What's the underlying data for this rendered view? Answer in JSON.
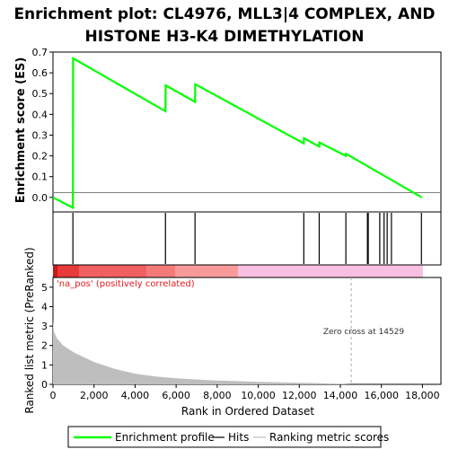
{
  "title_line1": "Enrichment plot: CL4976, MLL3|4 COMPLEX, AND",
  "title_line2": "HISTONE H3-K4 DIMETHYLATION",
  "es_ylabel": "Enrichment score (ES)",
  "metric_ylabel": "Ranked list metric (PreRanked)",
  "xlabel": "Rank in Ordered Dataset",
  "corr_label": "'na_pos' (positively correlated)",
  "zero_cross_label": "Zero cross at 14529",
  "legend": {
    "profile": "Enrichment profile",
    "hits": "Hits",
    "metric": "Ranking metric scores"
  },
  "colors": {
    "profile": "#00ff00",
    "hits": "#000000",
    "metric_fill": "#bebebe",
    "corr_text": "#e41a1c"
  },
  "chart_data": {
    "type": "line",
    "title": "Enrichment plot: CL4976, MLL3|4 COMPLEX, AND HISTONE H3-K4 DIMETHYLATION",
    "xlim": [
      0,
      18900
    ],
    "x_ticks": [
      0,
      2000,
      4000,
      6000,
      8000,
      10000,
      12000,
      14000,
      16000,
      18000
    ],
    "x_tick_labels": [
      "0",
      "2,000",
      "4,000",
      "6,000",
      "8,000",
      "10,000",
      "12,000",
      "14,000",
      "16,000",
      "18,000"
    ],
    "es_ylim": [
      -0.07,
      0.7
    ],
    "es_ticks": [
      0.0,
      0.1,
      0.2,
      0.3,
      0.4,
      0.5,
      0.6,
      0.7
    ],
    "es_tick_labels": [
      "0.0",
      "0.1",
      "0.2",
      "0.3",
      "0.4",
      "0.5",
      "0.6",
      "0.7"
    ],
    "metric_ylim": [
      0,
      5.5
    ],
    "metric_ticks": [
      0,
      1,
      2,
      3,
      4,
      5
    ],
    "metric_tick_labels": [
      "0",
      "1",
      "2",
      "3",
      "4",
      "5"
    ],
    "zero_cross": 14529,
    "series": [
      {
        "name": "Enrichment profile",
        "x": [
          0,
          970,
          980,
          5480,
          5490,
          6920,
          6930,
          12220,
          12230,
          12970,
          12980,
          14270,
          14280,
          17970
        ],
        "y": [
          0.0,
          -0.05,
          0.67,
          0.415,
          0.54,
          0.46,
          0.545,
          0.26,
          0.285,
          0.245,
          0.265,
          0.2,
          0.21,
          0.0
        ]
      }
    ],
    "hits": [
      970,
      5480,
      6920,
      12220,
      12970,
      14270,
      15320,
      15360,
      15920,
      16130,
      16280,
      16490,
      17950
    ],
    "metric_curve": {
      "x": [
        0,
        50,
        200,
        500,
        1000,
        2000,
        3000,
        4000,
        5000,
        6000,
        7000,
        8000,
        9000,
        10000,
        11000,
        12000,
        13000,
        14000,
        14529,
        15000,
        16000,
        17000,
        18000
      ],
      "y": [
        3.3,
        2.7,
        2.35,
        2.0,
        1.65,
        1.15,
        0.8,
        0.55,
        0.4,
        0.31,
        0.25,
        0.2,
        0.16,
        0.13,
        0.1,
        0.08,
        0.06,
        0.03,
        0.0,
        0.0,
        0.0,
        0.0,
        0.0
      ]
    }
  }
}
